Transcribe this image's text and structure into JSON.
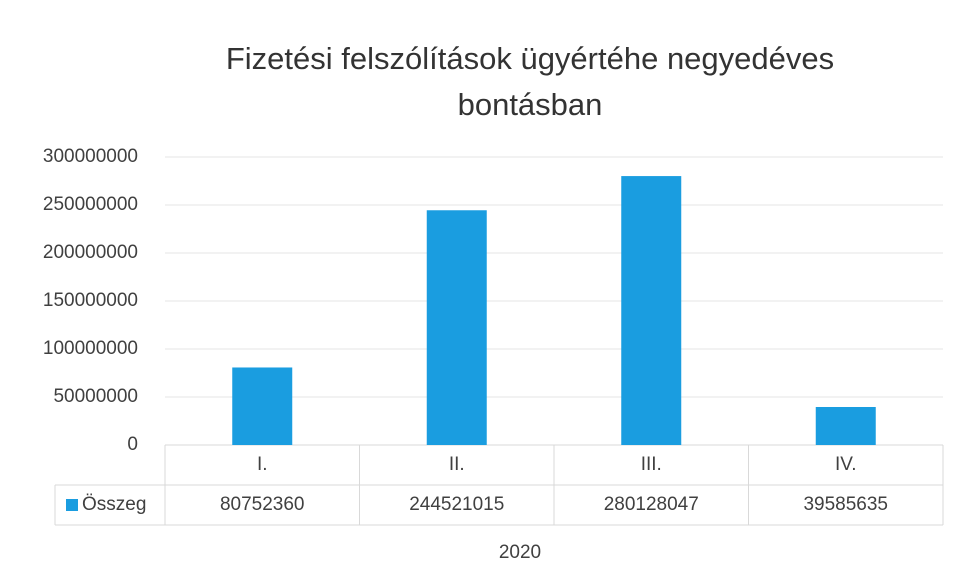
{
  "chart_data": {
    "type": "bar",
    "title": "Fizetési felszólítások ügyértéhe negyedéves bontásban",
    "categories": [
      "I.",
      "II.",
      "III.",
      "IV."
    ],
    "series": [
      {
        "name": "Összeg",
        "color": "#1a9de0",
        "values": [
          80752360,
          244521015,
          280128047,
          39585635
        ]
      }
    ],
    "x_label": "2020",
    "ylim": [
      0,
      300000000
    ],
    "yticks": [
      0,
      50000000,
      100000000,
      150000000,
      200000000,
      250000000,
      300000000
    ],
    "grid": true,
    "data_table": true
  }
}
